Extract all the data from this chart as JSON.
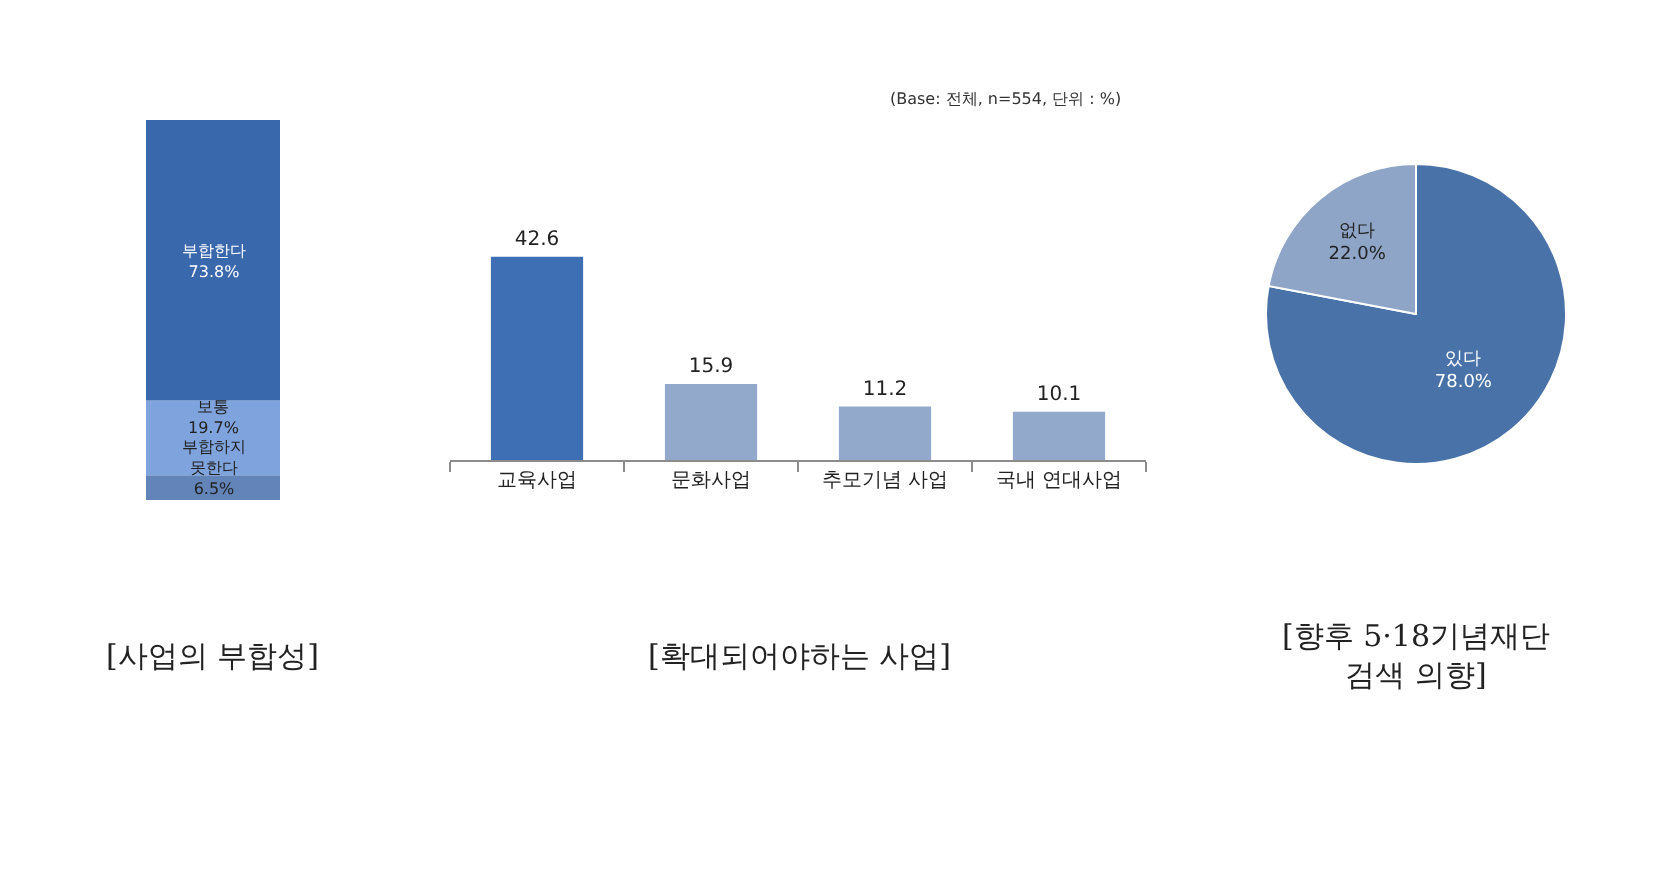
{
  "chart_data": [
    {
      "type": "bar",
      "stacked": true,
      "title": "[사업의 부합성]",
      "categories": [
        null
      ],
      "tick_labels": false,
      "series": [
        {
          "name": "부합하지\n못한다",
          "color": "#6384b8",
          "values": [
            6.5
          ],
          "value_labels": [
            "6.5%"
          ]
        },
        {
          "name": "보통",
          "color": "#7fa3dd",
          "values": [
            19.7
          ],
          "value_labels": [
            "19.7%"
          ]
        },
        {
          "name": "부합한다",
          "color": "#3a68ad",
          "values": [
            73.8
          ],
          "value_labels": [
            "73.8%"
          ]
        }
      ]
    },
    {
      "type": "bar",
      "title": "[확대되어야하는 사업]",
      "categories": [
        "교육사업",
        "문화사업",
        "추모기념 사업",
        "국내 연대사업"
      ],
      "values": [
        42.6,
        15.9,
        11.2,
        10.1
      ],
      "colors": [
        "#3e6fb4",
        "#93a9cb",
        "#93a9cb",
        "#93a9cb"
      ],
      "data_labels": true,
      "tick_labels": "x",
      "annotations": [
        "(Base: 전체, n=554, 단위 : %)"
      ]
    },
    {
      "type": "pie",
      "title": "[향후 5·18기념재단\n검색 의향]",
      "categories": [
        "있다",
        "없다"
      ],
      "values": [
        78.0,
        22.0
      ],
      "colors": [
        "#4872a8",
        "#8ea5c8"
      ],
      "value_labels": [
        "78.0%",
        "22.0%"
      ]
    }
  ]
}
